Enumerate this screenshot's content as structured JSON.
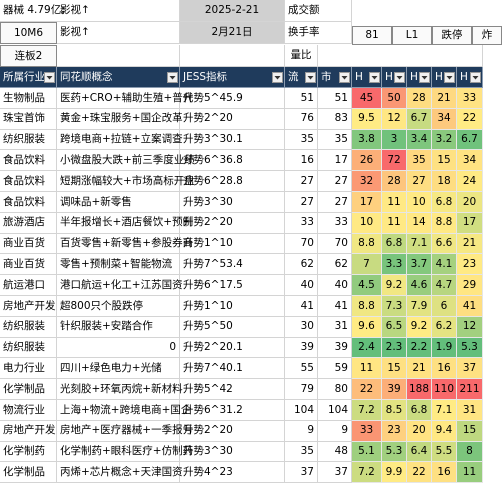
{
  "top": {
    "note": "器械 4.79亿;",
    "concept1": "影视↑",
    "date": "2025-2-21",
    "label1": "成交额",
    "button": "10M6",
    "concept2": "影视↑",
    "date_cn": "2月21日",
    "label2": "换手率",
    "tab1": "81",
    "tab2": "L1",
    "tab3": "跌停",
    "tab4": "炸",
    "streak": "连板2",
    "label3": "量比"
  },
  "table": {
    "headers": [
      "所属行业",
      "同花顺概念",
      "JESS指标",
      "流",
      "市",
      "H",
      "H",
      "H",
      "H",
      "H"
    ],
    "rows": [
      [
        "生物制品",
        "医药+CRO+辅助生殖+普代",
        "升势5^45.9",
        51,
        51,
        45,
        50,
        28,
        21,
        33
      ],
      [
        "珠宝首饰",
        "黄金+珠宝服务+国企改革",
        "升势2^20",
        76,
        83,
        9.5,
        12,
        6.7,
        34,
        22
      ],
      [
        "纺织服装",
        "跨境电商+拉链+立案调查",
        "升势3^30.1",
        35,
        35,
        3.8,
        3,
        3.4,
        3.2,
        6.7
      ],
      [
        "食品饮料",
        "小微盘股大跌+前三季度业绩",
        "升势6^36.8",
        16,
        17,
        26,
        72,
        35,
        15,
        34
      ],
      [
        "食品饮料",
        "短期涨幅较大+市场高标开盘",
        "升势6^28.8",
        27,
        27,
        32,
        28,
        27,
        18,
        24
      ],
      [
        "食品饮料",
        "调味品+新零售",
        "升势3^30",
        27,
        27,
        17,
        11,
        10,
        6.8,
        20
      ],
      [
        "旅游酒店",
        "半年报增长+酒店餐饮+预制",
        "升势2^20",
        33,
        33,
        10,
        11,
        14,
        8.8,
        17
      ],
      [
        "商业百货",
        "百货零售+新零售+参股券商",
        "升势1^10",
        70,
        70,
        8.8,
        6.8,
        7.1,
        6.6,
        21
      ],
      [
        "商业百货",
        "零售+预制菜+智能物流",
        "升势7^53.4",
        62,
        62,
        7,
        3.3,
        3.7,
        4.1,
        23
      ],
      [
        "航运港口",
        "港口航运+化工+江苏国资",
        "升势6^17.5",
        40,
        40,
        4.5,
        9.2,
        4.6,
        4.7,
        29
      ],
      [
        "房地产开发",
        "超800只个股跌停",
        "升势1^10",
        41,
        41,
        8.8,
        7.3,
        7.9,
        6,
        41
      ],
      [
        "纺织服装",
        "针织服装+安踏合作",
        "升势5^50",
        30,
        31,
        9.6,
        6.5,
        9.2,
        6.2,
        12
      ],
      [
        "纺织服装",
        0,
        "升势2^20.1",
        39,
        39,
        2.4,
        2.3,
        2.2,
        1.9,
        5.3
      ],
      [
        "电力行业",
        "四川+绿色电力+光储",
        "升势7^40.1",
        55,
        59,
        11,
        15,
        21,
        16,
        37
      ],
      [
        "化学制品",
        "光刻胶+环氧丙烷+新材料",
        "升势5^42",
        79,
        80,
        22,
        39,
        188,
        110,
        211
      ],
      [
        "物流行业",
        "上海+物流+跨境电商+国企",
        "升势6^31.2",
        104,
        104,
        7.2,
        8.5,
        6.8,
        7.1,
        31
      ],
      [
        "房地产开发",
        "房地产+医疗器械+一季报亏",
        "升势2^20",
        9,
        9,
        33,
        23,
        20,
        9.4,
        15
      ],
      [
        "化学制药",
        "化学制药+眼科医疗+仿制药",
        "升势3^30",
        35,
        48,
        5.1,
        5.3,
        6.4,
        5.5,
        8
      ],
      [
        "化学制品",
        "丙烯+芯片概念+天津国资",
        "升势4^23",
        37,
        37,
        7.2,
        9.9,
        22,
        16,
        11
      ]
    ]
  }
}
